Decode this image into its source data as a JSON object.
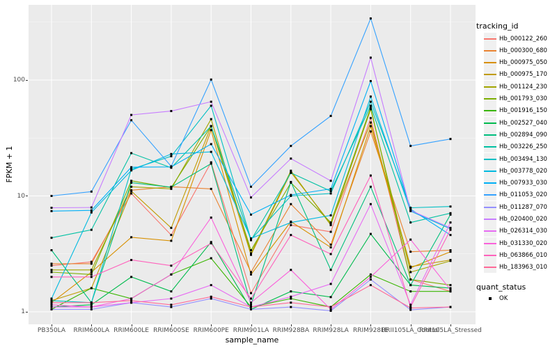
{
  "theme": {
    "panel_bg": "#EBEBEB",
    "grid_major": "#FFFFFF",
    "grid_minor": "#FFFFFF",
    "tick_label_color": "#4D4D4D",
    "marker_color": "#000000",
    "legend_key_bg": "#F0F0F0"
  },
  "chart_data": {
    "type": "line",
    "xlabel": "sample_name",
    "ylabel": "FPKM + 1",
    "yscale": "log10",
    "yticks": [
      "1",
      "10",
      "100"
    ],
    "ylim": [
      1,
      400
    ],
    "grid": "on",
    "legend_position": "right",
    "legend_title": "tracking_id",
    "quant_status": {
      "title": "quant_status",
      "items": [
        "OK"
      ],
      "marker": "black-square"
    },
    "categories": [
      "PB350LA",
      "RRIM600LA",
      "RRIM600LE",
      "RRIM600SE",
      "RRIM600PE",
      "RRIM901LA",
      "RRIM928BA",
      "RRIM928LA",
      "RRIM928LE",
      "RRII105LA_Control",
      "RRII105LA_Stressed"
    ],
    "series": [
      {
        "id": "Hb_000122_260",
        "color": "#F8766D",
        "values": [
          2.5,
          2.7,
          10.5,
          4.6,
          19.5,
          1.45,
          5.6,
          4.9,
          47,
          1.9,
          1.5
        ]
      },
      {
        "id": "Hb_000300_680",
        "color": "#EA8331",
        "values": [
          2.6,
          2.6,
          11.2,
          12.0,
          11.5,
          2.2,
          8.5,
          3.8,
          36,
          3.3,
          3.4
        ]
      },
      {
        "id": "Hb_000975_050",
        "color": "#D89000",
        "values": [
          1.2,
          2.2,
          4.4,
          4.1,
          37,
          2.1,
          6.0,
          3.6,
          40,
          2.4,
          3.3
        ]
      },
      {
        "id": "Hb_000975_170",
        "color": "#C09B00",
        "values": [
          1.25,
          1.6,
          11.0,
          5.3,
          40,
          3.1,
          16,
          5.75,
          43,
          2.45,
          2.8
        ]
      },
      {
        "id": "Hb_001124_230",
        "color": "#A3A500",
        "values": [
          2.3,
          2.3,
          12.0,
          11.5,
          46,
          3.2,
          16.5,
          5.6,
          56,
          2.2,
          2.75
        ]
      },
      {
        "id": "Hb_001793_030",
        "color": "#7CAE00",
        "values": [
          2.2,
          2.1,
          13.5,
          11.8,
          40,
          3.4,
          13,
          5.9,
          58,
          1.9,
          1.7
        ]
      },
      {
        "id": "Hb_001916_150",
        "color": "#39B600",
        "values": [
          1.05,
          1.6,
          1.3,
          2.1,
          2.9,
          1.1,
          1.3,
          1.1,
          2.1,
          1.5,
          1.5
        ]
      },
      {
        "id": "Hb_002527_040",
        "color": "#00BB4E",
        "values": [
          1.1,
          1.15,
          2.0,
          1.5,
          4.0,
          1.05,
          1.5,
          1.34,
          4.7,
          1.7,
          1.6
        ]
      },
      {
        "id": "Hb_002894_090",
        "color": "#00BF7D",
        "values": [
          3.4,
          1.2,
          13.0,
          11.9,
          19.0,
          1.15,
          13.2,
          2.3,
          12,
          1.7,
          6.9
        ]
      },
      {
        "id": "Hb_003226_250",
        "color": "#00C1A3",
        "values": [
          4.35,
          5.1,
          23.4,
          17.5,
          40,
          4.15,
          15.8,
          11,
          60,
          5.9,
          7.1
        ]
      },
      {
        "id": "Hb_003494_130",
        "color": "#00BFC4",
        "values": [
          1.25,
          1.2,
          17.0,
          22,
          60,
          4.2,
          10,
          10.5,
          65,
          7.9,
          8.1
        ]
      },
      {
        "id": "Hb_003778_020",
        "color": "#00BAE0",
        "values": [
          1.3,
          7.2,
          16.6,
          23,
          24,
          4.3,
          5.9,
          6.8,
          72,
          7.4,
          5.2
        ]
      },
      {
        "id": "Hb_007933_030",
        "color": "#00B0F6",
        "values": [
          7.4,
          7.5,
          17.7,
          17.8,
          28,
          6.9,
          10.2,
          11.5,
          98,
          7.7,
          4.6
        ]
      },
      {
        "id": "Hb_011053_020",
        "color": "#35A2FF",
        "values": [
          10.0,
          10.9,
          45,
          18,
          101,
          12,
          27,
          49,
          340,
          27,
          31
        ]
      },
      {
        "id": "Hb_011287_070",
        "color": "#9590FF",
        "values": [
          1.05,
          1.05,
          1.2,
          1.1,
          1.3,
          1.05,
          1.1,
          1.02,
          1.9,
          1.04,
          1.1
        ]
      },
      {
        "id": "Hb_020400_020",
        "color": "#C77CFF",
        "values": [
          7.9,
          7.95,
          50,
          54,
          65,
          9.7,
          21,
          13.5,
          156,
          7.5,
          5.3
        ]
      },
      {
        "id": "Hb_026314_030",
        "color": "#E76BF3",
        "values": [
          1.1,
          1.1,
          1.2,
          1.3,
          1.7,
          1.1,
          1.35,
          1.74,
          8.5,
          1.15,
          5.9
        ]
      },
      {
        "id": "Hb_031330_020",
        "color": "#FA62DB",
        "values": [
          1.15,
          1.1,
          1.3,
          2.1,
          6.5,
          1.2,
          2.3,
          1.05,
          2.0,
          4.2,
          1.55
        ]
      },
      {
        "id": "Hb_063866_010",
        "color": "#FF62BC",
        "values": [
          2.0,
          2.0,
          2.8,
          2.5,
          3.9,
          1.3,
          4.6,
          3.15,
          15,
          1.1,
          5.1
        ]
      },
      {
        "id": "Hb_183963_010",
        "color": "#FF6A98",
        "values": [
          1.2,
          1.2,
          1.25,
          1.15,
          1.35,
          1.1,
          1.2,
          1.1,
          1.7,
          1.08,
          1.1
        ]
      }
    ]
  }
}
